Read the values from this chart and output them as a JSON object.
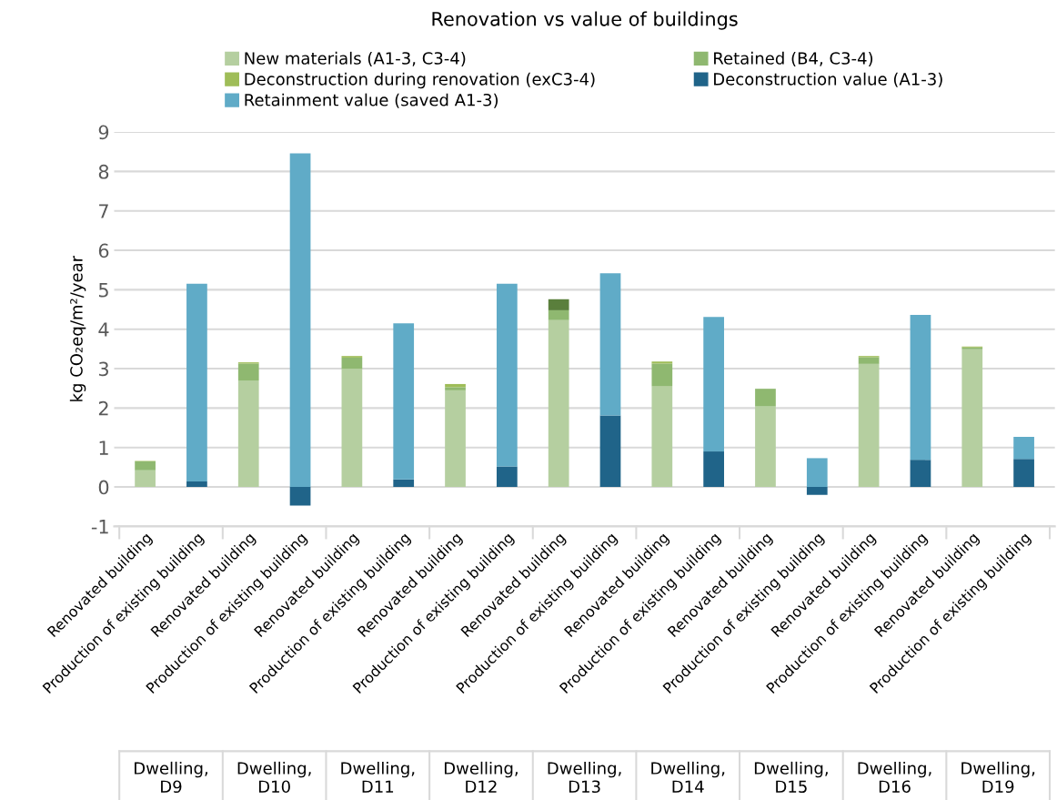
{
  "chart_data": {
    "type": "bar",
    "title": "Renovation vs value of buildings",
    "ylabel": "kg CO₂eq/m²/year",
    "categories": [
      "Renovated building",
      "Production of existing building",
      "Renovated building",
      "Production of existing building",
      "Renovated building",
      "Production of existing building",
      "Renovated building",
      "Production of existing building",
      "Renovated building",
      "Production of existing building",
      "Renovated building",
      "Production of existing building",
      "Renovated building",
      "Production of existing building",
      "Renovated building",
      "Production of existing building",
      "Renovated building",
      "Production of existing building"
    ],
    "stacked": true,
    "series": [
      {
        "name": "New materials (A1-3, C3-4)",
        "color": "#b5cfa0",
        "values": [
          0.42,
          null,
          2.7,
          null,
          3.0,
          null,
          2.45,
          null,
          4.23,
          null,
          2.56,
          null,
          2.04,
          null,
          3.12,
          null,
          3.49,
          null
        ]
      },
      {
        "name": "Retained (B4, C3-4)",
        "color": "#8fb870",
        "values": [
          0.23,
          null,
          0.43,
          null,
          0.28,
          null,
          0.08,
          null,
          0.25,
          null,
          0.57,
          null,
          0.45,
          null,
          0.17,
          null,
          0.05,
          null
        ]
      },
      {
        "name": "Deconstruction during renovation (exC3-4)",
        "color": "#9fbd58",
        "values": [
          0.01,
          null,
          0.03,
          null,
          0.04,
          null,
          0.08,
          null,
          null,
          null,
          0.05,
          null,
          null,
          null,
          0.03,
          null,
          0.02,
          null
        ]
      },
      {
        "color": "#5a7f3c",
        "values": [
          null,
          null,
          null,
          null,
          null,
          null,
          null,
          null,
          0.28,
          null,
          null,
          null,
          null,
          null,
          null,
          null,
          null,
          null
        ]
      },
      {
        "name": "Deconstruction value (A1-3)",
        "color": "#206489",
        "values": [
          null,
          0.14,
          null,
          -0.47,
          null,
          0.19,
          null,
          0.52,
          null,
          1.81,
          null,
          0.9,
          null,
          -0.2,
          null,
          0.69,
          null,
          0.71
        ]
      },
      {
        "name": "Retainment value (saved A1-3)",
        "color": "#60abc7",
        "values": [
          null,
          5.01,
          null,
          8.46,
          null,
          3.96,
          null,
          4.63,
          null,
          3.61,
          null,
          3.41,
          null,
          0.73,
          null,
          3.67,
          null,
          0.56
        ]
      }
    ],
    "ylim": [
      -1,
      9
    ],
    "yticks": [
      -1,
      0,
      1,
      2,
      3,
      4,
      5,
      6,
      7,
      8,
      9
    ],
    "grid": "y",
    "legend": "top",
    "annotations": [
      "Dwelling,\nD9",
      "Dwelling,\nD10",
      "Dwelling,\nD11",
      "Dwelling,\nD12",
      "Dwelling,\nD13",
      "Dwelling,\nD14",
      "Dwelling,\nD15",
      "Dwelling,\nD16",
      "Dwelling,\nD19"
    ]
  }
}
